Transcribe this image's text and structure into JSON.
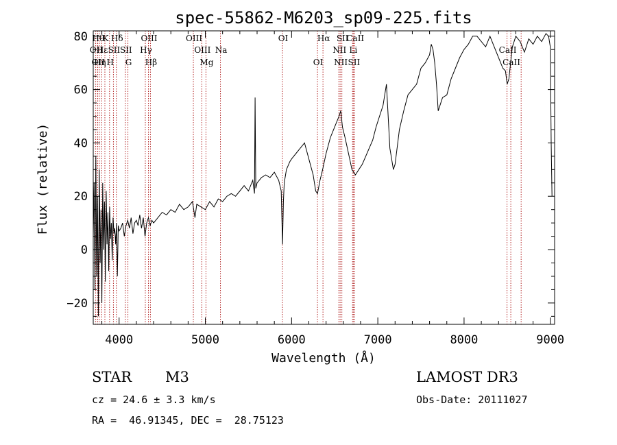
{
  "chart_data": {
    "type": "line",
    "title": "spec-55862-M6203_sp09-225.fits",
    "xlabel": "Wavelength (Å)",
    "ylabel": "Flux (relative)",
    "xlim": [
      3700,
      9050
    ],
    "ylim": [
      -28,
      82
    ],
    "x_ticks": [
      4000,
      5000,
      6000,
      7000,
      8000,
      9000
    ],
    "y_ticks": [
      -20,
      0,
      20,
      40,
      60,
      80
    ],
    "spectrum": {
      "name": "flux",
      "x": [
        3700,
        3710,
        3720,
        3730,
        3740,
        3750,
        3760,
        3770,
        3780,
        3790,
        3800,
        3810,
        3820,
        3830,
        3840,
        3850,
        3860,
        3870,
        3880,
        3890,
        3900,
        3910,
        3920,
        3930,
        3940,
        3950,
        3960,
        3970,
        3980,
        3990,
        4000,
        4020,
        4040,
        4060,
        4080,
        4100,
        4120,
        4140,
        4160,
        4180,
        4200,
        4220,
        4240,
        4260,
        4280,
        4300,
        4320,
        4340,
        4360,
        4380,
        4400,
        4450,
        4500,
        4550,
        4600,
        4650,
        4700,
        4750,
        4800,
        4850,
        4880,
        4900,
        4950,
        5000,
        5050,
        5100,
        5150,
        5200,
        5250,
        5300,
        5350,
        5400,
        5450,
        5500,
        5550,
        5570,
        5577,
        5585,
        5600,
        5650,
        5700,
        5750,
        5800,
        5850,
        5880,
        5895,
        5905,
        5915,
        5940,
        5980,
        6000,
        6050,
        6100,
        6150,
        6200,
        6250,
        6280,
        6300,
        6330,
        6360,
        6400,
        6450,
        6500,
        6550,
        6570,
        6590,
        6620,
        6660,
        6700,
        6740,
        6780,
        6820,
        6860,
        6900,
        6940,
        6980,
        7020,
        7060,
        7100,
        7140,
        7180,
        7200,
        7250,
        7300,
        7350,
        7400,
        7450,
        7500,
        7550,
        7600,
        7620,
        7640,
        7660,
        7680,
        7700,
        7750,
        7800,
        7850,
        7900,
        7950,
        8000,
        8050,
        8100,
        8150,
        8200,
        8250,
        8300,
        8350,
        8400,
        8450,
        8480,
        8500,
        8520,
        8540,
        8560,
        8600,
        8650,
        8700,
        8750,
        8800,
        8850,
        8900,
        8950,
        8980,
        9000,
        9010,
        9020
      ],
      "y": [
        5,
        25,
        -15,
        35,
        -10,
        20,
        -25,
        30,
        -5,
        15,
        -20,
        25,
        0,
        18,
        -12,
        22,
        2,
        14,
        -8,
        16,
        4,
        10,
        -4,
        12,
        6,
        8,
        2,
        10,
        -10,
        9,
        7,
        8,
        10,
        5,
        9,
        11,
        8,
        12,
        6,
        10,
        11,
        9,
        13,
        8,
        12,
        5,
        10,
        12,
        9,
        11,
        10,
        12,
        14,
        13,
        15,
        14,
        17,
        15,
        16,
        18,
        12,
        17,
        16,
        15,
        18,
        16,
        19,
        18,
        20,
        21,
        20,
        22,
        24,
        22,
        26,
        21,
        57,
        23,
        25,
        27,
        28,
        27,
        29,
        26,
        22,
        2,
        18,
        25,
        30,
        33,
        34,
        36,
        38,
        40,
        34,
        28,
        22,
        21,
        26,
        30,
        36,
        42,
        46,
        50,
        52,
        46,
        42,
        36,
        30,
        28,
        30,
        32,
        35,
        38,
        41,
        46,
        50,
        54,
        62,
        38,
        30,
        32,
        45,
        52,
        58,
        60,
        62,
        68,
        70,
        73,
        77,
        75,
        70,
        62,
        52,
        57,
        58,
        64,
        68,
        72,
        75,
        77,
        80,
        80,
        78,
        76,
        80,
        76,
        72,
        68,
        67,
        62,
        64,
        70,
        76,
        80,
        78,
        74,
        79,
        77,
        80,
        78,
        81,
        80,
        76,
        40,
        20
      ],
      "color": "#000000"
    },
    "line_markers": [
      {
        "x": 3727,
        "label": "OII",
        "row": 1
      },
      {
        "x": 3750,
        "label": "Hθ",
        "row": 0
      },
      {
        "x": 3750,
        "label": "OII",
        "row": 2
      },
      {
        "x": 3770,
        "label": "Hη",
        "row": 2
      },
      {
        "x": 3797,
        "label": "Hε",
        "row": 1
      },
      {
        "x": 3835,
        "label": "K",
        "row": 0
      },
      {
        "x": 3889,
        "label": "H",
        "row": 2
      },
      {
        "x": 3934,
        "label": "SII",
        "row": 1
      },
      {
        "x": 3968,
        "label": "Hδ",
        "row": 0
      },
      {
        "x": 4072,
        "label": "SII",
        "row": 1
      },
      {
        "x": 4102,
        "label": "G",
        "row": 2
      },
      {
        "x": 4304,
        "label": "Hγ",
        "row": 1
      },
      {
        "x": 4340,
        "label": "OIII",
        "row": 0
      },
      {
        "x": 4363,
        "label": "Hβ",
        "row": 2
      },
      {
        "x": 4861,
        "label": "OIII",
        "row": 0
      },
      {
        "x": 4959,
        "label": "OIII",
        "row": 1
      },
      {
        "x": 5007,
        "label": "Mg",
        "row": 2
      },
      {
        "x": 5175,
        "label": "Na",
        "row": 1
      },
      {
        "x": 5894,
        "label": "OI",
        "row": 0
      },
      {
        "x": 6300,
        "label": "OI",
        "row": 2
      },
      {
        "x": 6364,
        "label": "Hα",
        "row": 0
      },
      {
        "x": 6548,
        "label": "NII",
        "row": 1
      },
      {
        "x": 6563,
        "label": "NII",
        "row": 2
      },
      {
        "x": 6583,
        "label": "SII",
        "row": 0
      },
      {
        "x": 6707,
        "label": "Li",
        "row": 1
      },
      {
        "x": 6716,
        "label": "SII",
        "row": 2
      },
      {
        "x": 6731,
        "label": "CaII",
        "row": 0
      },
      {
        "x": 8498,
        "label": "CaII",
        "row": 1
      },
      {
        "x": 8542,
        "label": "CaII",
        "row": 2
      },
      {
        "x": 8662,
        "label": "",
        "row": 0
      }
    ],
    "marker_color": "#b22222"
  },
  "info": {
    "object_class": "STAR",
    "subclass": "M3",
    "survey": "LAMOST DR3",
    "redshift": "cz = 24.6 ± 3.3 km/s",
    "obs_date": "Obs-Date: 20111027",
    "coords": "RA =  46.91345, DEC =  28.75123"
  }
}
